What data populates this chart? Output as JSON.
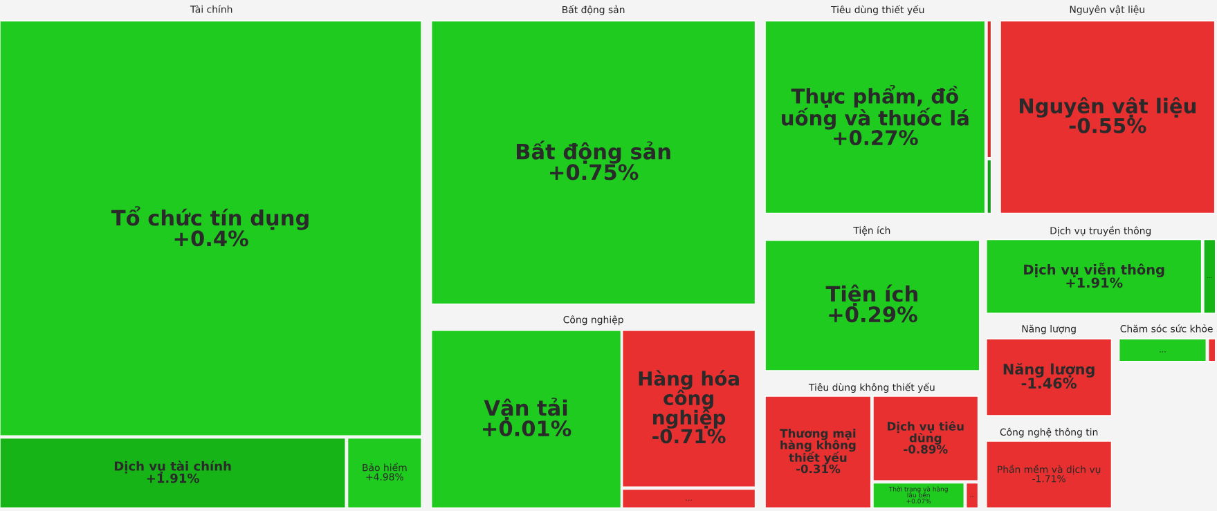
{
  "chart_data": {
    "type": "other",
    "annotations": [
      "Tài chính",
      "Bất động sản",
      "Công nghiệp",
      "Tiêu dùng thiết yếu",
      "Nguyên vật liệu",
      "Tiện ích",
      "Tiêu dùng không thiết yếu",
      "Dịch vụ truyền thông",
      "Năng lượng",
      "Chăm sóc sức khỏe",
      "Công nghệ thông tin"
    ],
    "categories": [
      "Tổ chức tín dụng",
      "Dịch vụ tài chính",
      "Bảo hiểm",
      "Bất động sản",
      "Vận tải",
      "Hàng hóa công nghiệp",
      "...",
      "Thực phẩm, đồ uống và thuốc lá",
      null,
      null,
      "Nguyên vật liệu",
      "Tiện ích",
      "Thương mại hàng không thiết yếu",
      "Dịch vụ tiêu dùng",
      "Thời trang và hàng lâu bền",
      "...",
      "Dịch vụ viễn thông",
      "...",
      "Năng lượng",
      "...",
      null,
      "Phần mềm và dịch vụ"
    ],
    "values": [
      0.4,
      1.91,
      4.98,
      0.75,
      0.01,
      -0.71,
      null,
      0.27,
      null,
      null,
      -0.55,
      0.29,
      -0.31,
      -0.89,
      0.07,
      null,
      1.91,
      null,
      -1.46,
      null,
      null,
      -1.71
    ],
    "value_labels": [
      "+0.4%",
      "+1.91%",
      "+4.98%",
      "+0.75%",
      "+0.01%",
      "-0.71%",
      null,
      "+0.27%",
      null,
      null,
      "-0.55%",
      "+0.29%",
      "-0.31%",
      "-0.89%",
      "+0.07%",
      null,
      "+1.91%",
      null,
      "-1.46%",
      null,
      null,
      "-1.71%"
    ],
    "colors": [
      "#1ecb1e",
      "#17b417",
      "#1ecb1e",
      "#1ecb1e",
      "#1ecb1e",
      "#e83030",
      "#e83030",
      "#1ecb1e",
      "#d42a2a",
      "#159c15",
      "#e83030",
      "#1ecb1e",
      "#e83030",
      "#e83030",
      "#1ecb1e",
      "#e83030",
      "#1ecb1e",
      "#17b417",
      "#e83030",
      "#1ecb1e",
      "#e83030",
      "#e83030"
    ]
  }
}
